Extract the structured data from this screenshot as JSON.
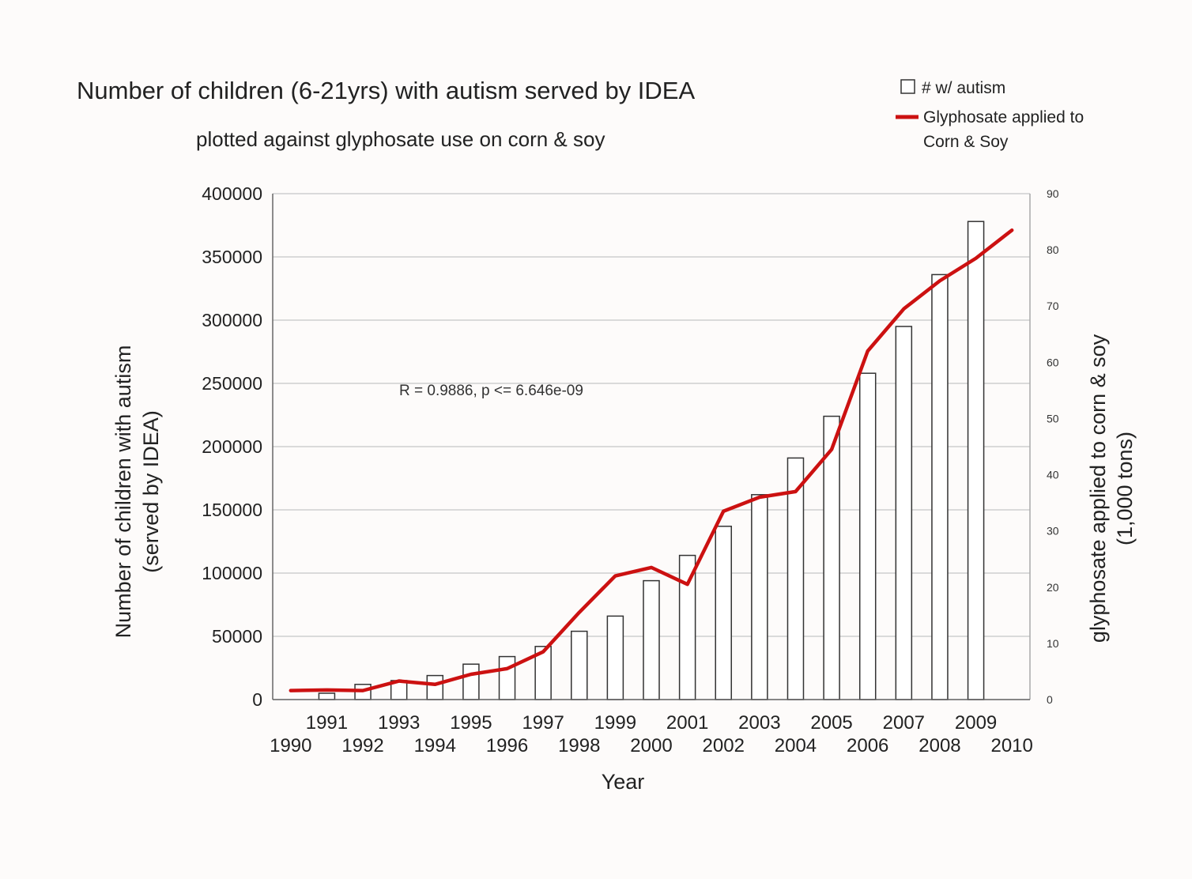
{
  "chart_data": {
    "type": "bar",
    "title": "Number of children (6-21yrs) with autism served by IDEA",
    "subtitle": "plotted against glyphosate use on corn & soy",
    "xlabel": "Year",
    "ylabel": [
      "Number of children with autism",
      "(served by IDEA)"
    ],
    "y2label": [
      "glyphosate applied to corn & soy",
      "(1,000 tons)"
    ],
    "annotation": "R = 0.9886, p <= 6.646e-09",
    "legend": {
      "position": "top-right",
      "items": [
        {
          "label": "# w/ autism",
          "kind": "bar"
        },
        {
          "label": "Glyphosate applied to",
          "label2": "Corn & Soy",
          "kind": "line",
          "color": "#cc1111"
        }
      ]
    },
    "xlim": [
      1990,
      2010
    ],
    "xticks_odd": [
      "1991",
      "1993",
      "1995",
      "1997",
      "1999",
      "2001",
      "2003",
      "2005",
      "2007",
      "2009"
    ],
    "xticks_even": [
      "1990",
      "1992",
      "1994",
      "1996",
      "1998",
      "2000",
      "2002",
      "2004",
      "2006",
      "2008",
      "2010"
    ],
    "ylim": [
      0,
      400000
    ],
    "yticks": [
      0,
      50000,
      100000,
      150000,
      200000,
      250000,
      300000,
      350000,
      400000
    ],
    "y2lim": [
      0,
      90
    ],
    "y2ticks": [
      0,
      10,
      20,
      30,
      40,
      50,
      60,
      70,
      80,
      90
    ],
    "grid": true,
    "series": [
      {
        "name": "# w/ autism",
        "axis": "left",
        "type": "bar",
        "x": [
          1991,
          1992,
          1993,
          1994,
          1995,
          1996,
          1997,
          1998,
          1999,
          2000,
          2001,
          2002,
          2003,
          2004,
          2005,
          2006,
          2007,
          2008,
          2009
        ],
        "values": [
          5000,
          12000,
          15000,
          19000,
          28000,
          34000,
          42000,
          54000,
          66000,
          94000,
          114000,
          137000,
          162000,
          191000,
          224000,
          258000,
          295000,
          336000,
          378000
        ]
      },
      {
        "name": "Glyphosate applied to Corn & Soy",
        "axis": "right",
        "type": "line",
        "color": "#cc1111",
        "x": [
          1990,
          1991,
          1992,
          1993,
          1994,
          1995,
          1996,
          1997,
          1998,
          1999,
          2000,
          2001,
          2002,
          2003,
          2004,
          2005,
          2006,
          2007,
          2008,
          2009,
          2010
        ],
        "values": [
          1.6,
          1.7,
          1.6,
          3.3,
          2.7,
          4.5,
          5.5,
          8.5,
          15.5,
          22,
          23.5,
          20.5,
          33.5,
          36,
          37,
          44.5,
          62,
          69.5,
          74.5,
          78.5,
          83.5
        ]
      }
    ]
  }
}
